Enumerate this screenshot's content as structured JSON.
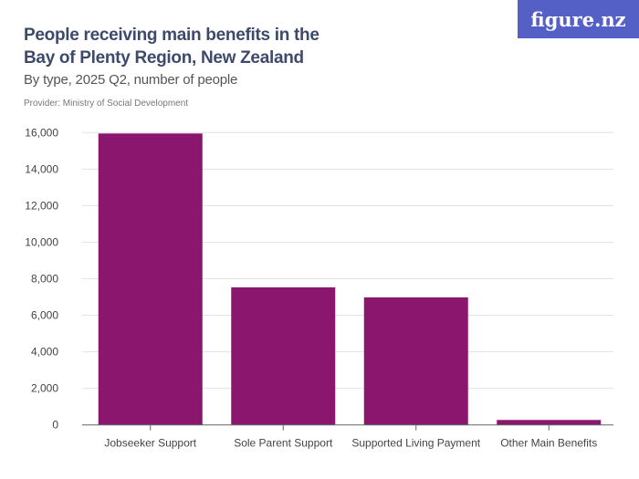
{
  "logo": "figure.nz",
  "chart_data": {
    "type": "bar",
    "title": "People receiving main benefits in the Bay of Plenty Region, New Zealand",
    "subtitle": "By type, 2025 Q2, number of people",
    "provider": "Provider: Ministry of Social Development",
    "categories": [
      "Jobseeker Support",
      "Sole Parent Support",
      "Supported Living Payment",
      "Other Main Benefits"
    ],
    "values": [
      15950,
      7530,
      6980,
      270
    ],
    "ylim": [
      0,
      16000
    ],
    "yticks": [
      0,
      2000,
      4000,
      6000,
      8000,
      10000,
      12000,
      14000,
      16000
    ],
    "ytick_labels": [
      "0",
      "2,000",
      "4,000",
      "6,000",
      "8,000",
      "10,000",
      "12,000",
      "14,000",
      "16,000"
    ],
    "grid": true,
    "bar_color": "#8a166e"
  }
}
